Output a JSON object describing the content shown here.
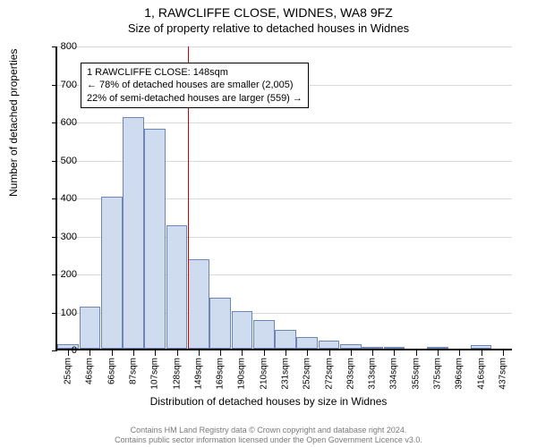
{
  "title": "1, RAWCLIFFE CLOSE, WIDNES, WA8 9FZ",
  "subtitle": "Size of property relative to detached houses in Widnes",
  "chart": {
    "type": "histogram",
    "ylabel": "Number of detached properties",
    "xlabel": "Distribution of detached houses by size in Widnes",
    "ylim": [
      0,
      800
    ],
    "ytick_step": 100,
    "grid_color": "#d9d9d9",
    "bar_fill": "#cfdcf0",
    "bar_stroke": "#6e86b5",
    "refline_color": "#cc0000",
    "refline_x_index": 6,
    "background_color": "#ffffff",
    "tick_fontsize": 10,
    "label_fontsize": 12,
    "title_fontsize": 14,
    "categories": [
      "25sqm",
      "46sqm",
      "66sqm",
      "87sqm",
      "107sqm",
      "128sqm",
      "149sqm",
      "169sqm",
      "190sqm",
      "210sqm",
      "231sqm",
      "252sqm",
      "272sqm",
      "293sqm",
      "313sqm",
      "334sqm",
      "355sqm",
      "375sqm",
      "396sqm",
      "416sqm",
      "437sqm"
    ],
    "values": [
      12,
      110,
      400,
      610,
      580,
      325,
      235,
      135,
      100,
      75,
      50,
      30,
      22,
      12,
      5,
      5,
      0,
      5,
      0,
      10,
      0
    ]
  },
  "annotation": {
    "line1": "1 RAWCLIFFE CLOSE: 148sqm",
    "line2": "← 78% of detached houses are smaller (2,005)",
    "line3": "22% of semi-detached houses are larger (559) →"
  },
  "footer": {
    "line1": "Contains HM Land Registry data © Crown copyright and database right 2024.",
    "line2": "Contains public sector information licensed under the Open Government Licence v3.0."
  }
}
